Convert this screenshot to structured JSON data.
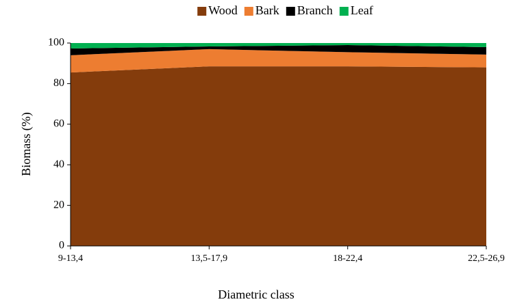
{
  "chart_data": {
    "type": "stacked_area",
    "x_label": "Diametric class",
    "y_label": "Biomass  (%)",
    "categories": [
      "9-13,4",
      "13,5-17,9",
      "18-22,4",
      "22,5-26,9"
    ],
    "series": [
      {
        "name": "Wood",
        "color": "#843c0c",
        "values": [
          85.5,
          88.5,
          88.5,
          88
        ]
      },
      {
        "name": "Bark",
        "color": "#ed7d31",
        "values": [
          8.5,
          8.5,
          7,
          6.3
        ]
      },
      {
        "name": "Branch",
        "color": "#000000",
        "values": [
          3.3,
          1.3,
          3.5,
          3.7
        ]
      },
      {
        "name": "Leaf",
        "color": "#00b050",
        "values": [
          2.7,
          1.7,
          1,
          2
        ]
      }
    ],
    "ylim": [
      0,
      100
    ],
    "yticks": [
      0,
      20,
      40,
      60,
      80,
      100
    ],
    "grid": false,
    "legend": "top"
  }
}
